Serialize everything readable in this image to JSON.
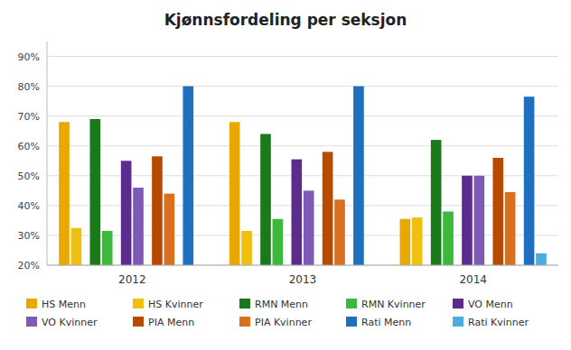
{
  "chart_data": {
    "type": "bar",
    "title": "Kjønnsfordeling per seksjon",
    "categories": [
      "2012",
      "2013",
      "2014"
    ],
    "series": [
      {
        "name": "HS Menn",
        "color": "#E8A800",
        "values": [
          0.68,
          0.68,
          0.355
        ]
      },
      {
        "name": "HS Kvinner",
        "color": "#F0C010",
        "values": [
          0.325,
          0.315,
          0.36
        ]
      },
      {
        "name": "RMN Menn",
        "color": "#1A7A1A",
        "values": [
          0.69,
          0.64,
          0.62
        ]
      },
      {
        "name": "RMN Kvinner",
        "color": "#3CB83C",
        "values": [
          0.315,
          0.355,
          0.38
        ]
      },
      {
        "name": "VO Menn",
        "color": "#5B2C8D",
        "values": [
          0.55,
          0.555,
          0.5
        ]
      },
      {
        "name": "VO Kvinner",
        "color": "#7D5BB5",
        "values": [
          0.46,
          0.45,
          0.5
        ]
      },
      {
        "name": "PIA Menn",
        "color": "#B84A00",
        "values": [
          0.565,
          0.58,
          0.56
        ]
      },
      {
        "name": "PIA Kvinner",
        "color": "#D97020",
        "values": [
          0.44,
          0.42,
          0.445
        ]
      },
      {
        "name": "Rati Menn",
        "color": "#1F6FBF",
        "values": [
          0.8,
          0.8,
          0.765
        ]
      },
      {
        "name": "Rati Kvinner",
        "color": "#4AACE0",
        "values": [
          null,
          null,
          0.24
        ]
      }
    ],
    "ylim": [
      0.2,
      0.95
    ],
    "yticks": [
      {
        "value": 0.2,
        "label": "20%"
      },
      {
        "value": 0.3,
        "label": "30%"
      },
      {
        "value": 0.4,
        "label": "40%"
      },
      {
        "value": 0.5,
        "label": "50%"
      },
      {
        "value": 0.6,
        "label": "60%"
      },
      {
        "value": 0.7,
        "label": "70%"
      },
      {
        "value": 0.8,
        "label": "80%"
      },
      {
        "value": 0.9,
        "label": "90%"
      }
    ],
    "grid": true,
    "legend": "bottom"
  }
}
